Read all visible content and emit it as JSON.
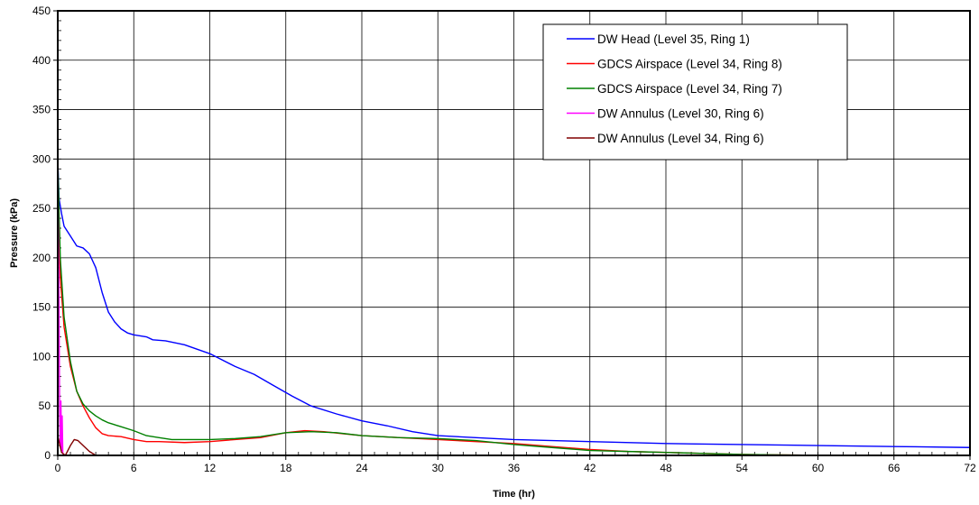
{
  "chart_data": {
    "type": "line",
    "title": "",
    "xlabel": "Time (hr)",
    "ylabel": "Pressure (kPa)",
    "xlim": [
      0,
      72
    ],
    "ylim": [
      0,
      450
    ],
    "x_ticks": [
      0,
      6,
      12,
      18,
      24,
      30,
      36,
      42,
      48,
      54,
      60,
      66,
      72
    ],
    "y_ticks": [
      0,
      50,
      100,
      150,
      200,
      250,
      300,
      350,
      400,
      450
    ],
    "grid": true,
    "legend_position": "top-right",
    "series": [
      {
        "name": "DW Head (Level 35, Ring 1)",
        "color": "#0000ff",
        "points": [
          [
            0,
            300
          ],
          [
            0.1,
            260
          ],
          [
            0.3,
            245
          ],
          [
            0.5,
            232
          ],
          [
            0.8,
            226
          ],
          [
            1.2,
            218
          ],
          [
            1.5,
            212
          ],
          [
            2,
            210
          ],
          [
            2.5,
            204
          ],
          [
            3,
            190
          ],
          [
            3.5,
            165
          ],
          [
            4,
            145
          ],
          [
            4.5,
            135
          ],
          [
            5,
            128
          ],
          [
            5.5,
            124
          ],
          [
            6,
            122
          ],
          [
            7,
            120
          ],
          [
            7.5,
            117
          ],
          [
            8.5,
            116
          ],
          [
            10,
            112
          ],
          [
            12,
            103
          ],
          [
            14,
            90
          ],
          [
            15.5,
            82
          ],
          [
            17,
            71
          ],
          [
            18.5,
            60
          ],
          [
            20,
            50
          ],
          [
            22,
            42
          ],
          [
            24,
            35
          ],
          [
            26,
            30
          ],
          [
            28,
            24
          ],
          [
            30,
            20
          ],
          [
            33,
            18
          ],
          [
            36,
            16
          ],
          [
            42,
            14
          ],
          [
            48,
            12
          ],
          [
            54,
            11
          ],
          [
            60,
            10
          ],
          [
            66,
            9
          ],
          [
            72,
            8
          ]
        ]
      },
      {
        "name": "GDCS Airspace (Level 34, Ring 8)",
        "color": "#ff0000",
        "points": [
          [
            0,
            250
          ],
          [
            0.2,
            180
          ],
          [
            0.5,
            130
          ],
          [
            1,
            90
          ],
          [
            1.5,
            65
          ],
          [
            2,
            50
          ],
          [
            2.5,
            38
          ],
          [
            3,
            28
          ],
          [
            3.5,
            22
          ],
          [
            4,
            20
          ],
          [
            5,
            19
          ],
          [
            6,
            16
          ],
          [
            7,
            14
          ],
          [
            8,
            14
          ],
          [
            10,
            13
          ],
          [
            12,
            14
          ],
          [
            14,
            16
          ],
          [
            16,
            18
          ],
          [
            18,
            23
          ],
          [
            19.5,
            25
          ],
          [
            21,
            24
          ],
          [
            24,
            20
          ],
          [
            27,
            18
          ],
          [
            30,
            16
          ],
          [
            33,
            14
          ],
          [
            36,
            12
          ],
          [
            39,
            9
          ],
          [
            42,
            6
          ],
          [
            45,
            4
          ],
          [
            48,
            3
          ],
          [
            51,
            2
          ],
          [
            54,
            1
          ],
          [
            57,
            0.5
          ],
          [
            60,
            0.2
          ],
          [
            72,
            0
          ]
        ]
      },
      {
        "name": "GDCS Airspace (Level 34, Ring 7)",
        "color": "#008000",
        "points": [
          [
            0,
            300
          ],
          [
            0.2,
            200
          ],
          [
            0.5,
            140
          ],
          [
            1,
            95
          ],
          [
            1.5,
            65
          ],
          [
            2,
            52
          ],
          [
            2.5,
            45
          ],
          [
            3,
            40
          ],
          [
            3.5,
            36
          ],
          [
            4,
            33
          ],
          [
            5,
            29
          ],
          [
            6,
            25
          ],
          [
            7,
            20
          ],
          [
            8,
            18
          ],
          [
            9,
            16
          ],
          [
            10,
            16
          ],
          [
            12,
            16
          ],
          [
            14,
            17
          ],
          [
            16,
            19
          ],
          [
            18,
            23
          ],
          [
            20,
            24
          ],
          [
            22,
            23
          ],
          [
            24,
            20
          ],
          [
            27,
            18
          ],
          [
            30,
            17
          ],
          [
            33,
            15
          ],
          [
            36,
            11
          ],
          [
            39,
            8
          ],
          [
            42,
            5
          ],
          [
            45,
            4
          ],
          [
            48,
            3
          ],
          [
            51,
            2
          ],
          [
            54,
            1
          ],
          [
            57,
            0.5
          ],
          [
            60,
            0.2
          ],
          [
            72,
            0
          ]
        ]
      },
      {
        "name": "DW Annulus (Level 30, Ring 6)",
        "color": "#ff00ff",
        "points": [
          [
            0,
            290
          ],
          [
            0.1,
            150
          ],
          [
            0.15,
            45
          ],
          [
            0.2,
            10
          ],
          [
            0.25,
            55
          ],
          [
            0.3,
            5
          ],
          [
            0.35,
            40
          ],
          [
            0.4,
            2
          ],
          [
            0.5,
            0
          ],
          [
            72,
            0
          ]
        ]
      },
      {
        "name": "DW Annulus (Level 34, Ring 6)",
        "color": "#800000",
        "points": [
          [
            0,
            20
          ],
          [
            0.3,
            3
          ],
          [
            0.6,
            0
          ],
          [
            1,
            10
          ],
          [
            1.3,
            16
          ],
          [
            1.6,
            15
          ],
          [
            2,
            10
          ],
          [
            2.5,
            4
          ],
          [
            3,
            0
          ],
          [
            72,
            0
          ]
        ]
      }
    ]
  }
}
